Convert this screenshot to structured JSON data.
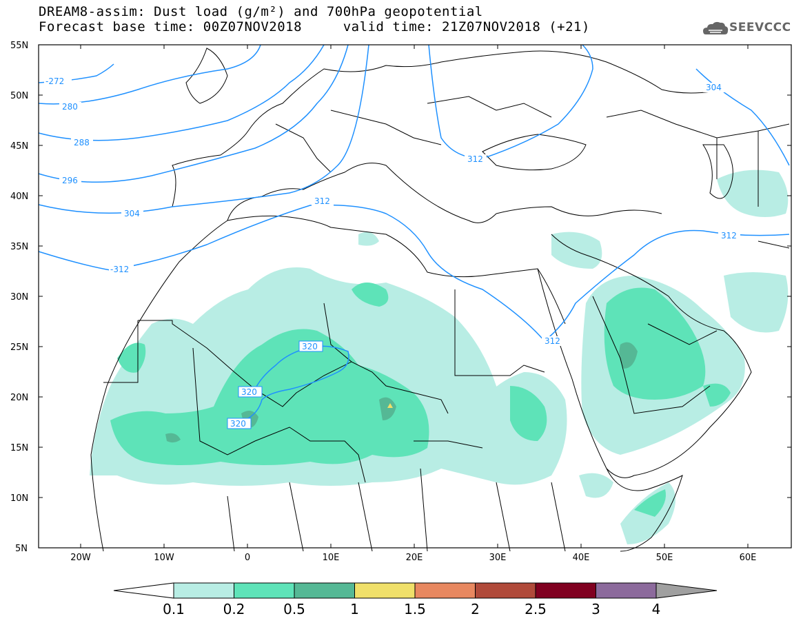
{
  "header": {
    "title_line1": "DREAM8-assim: Dust load (g/m²) and 700hPa geopotential",
    "title_line2": "Forecast base time: 00Z07NOV2018     valid time: 21Z07NOV2018 (+21)"
  },
  "logo": {
    "text": "SEEVCCC",
    "icon": "cloud-logo-icon"
  },
  "axes": {
    "lat_labels": [
      "55N",
      "50N",
      "45N",
      "40N",
      "35N",
      "30N",
      "25N",
      "20N",
      "15N",
      "10N",
      "5N"
    ],
    "lon_labels": [
      "20W",
      "10W",
      "0",
      "10E",
      "20E",
      "30E",
      "40E",
      "50E",
      "60E"
    ]
  },
  "contours": {
    "labels": [
      "-272",
      "280",
      "288",
      "296",
      "304",
      "312",
      "-312",
      "312",
      "312",
      "312",
      "320",
      "320",
      "320",
      "304"
    ]
  },
  "colorbar": {
    "ticks": [
      "0.1",
      "0.2",
      "0.5",
      "1",
      "1.5",
      "2",
      "2.5",
      "3",
      "4"
    ],
    "colors": [
      "#b8ede4",
      "#5ee3b8",
      "#55b895",
      "#f0e06a",
      "#e88860",
      "#b04a3a",
      "#800020",
      "#8c6a9c",
      "#a0a0a0"
    ]
  },
  "colors": {
    "contour": "#1e90ff",
    "dust_light": "#b8ede4",
    "dust_mid": "#5ee3b8",
    "dust_dark": "#55b895"
  }
}
